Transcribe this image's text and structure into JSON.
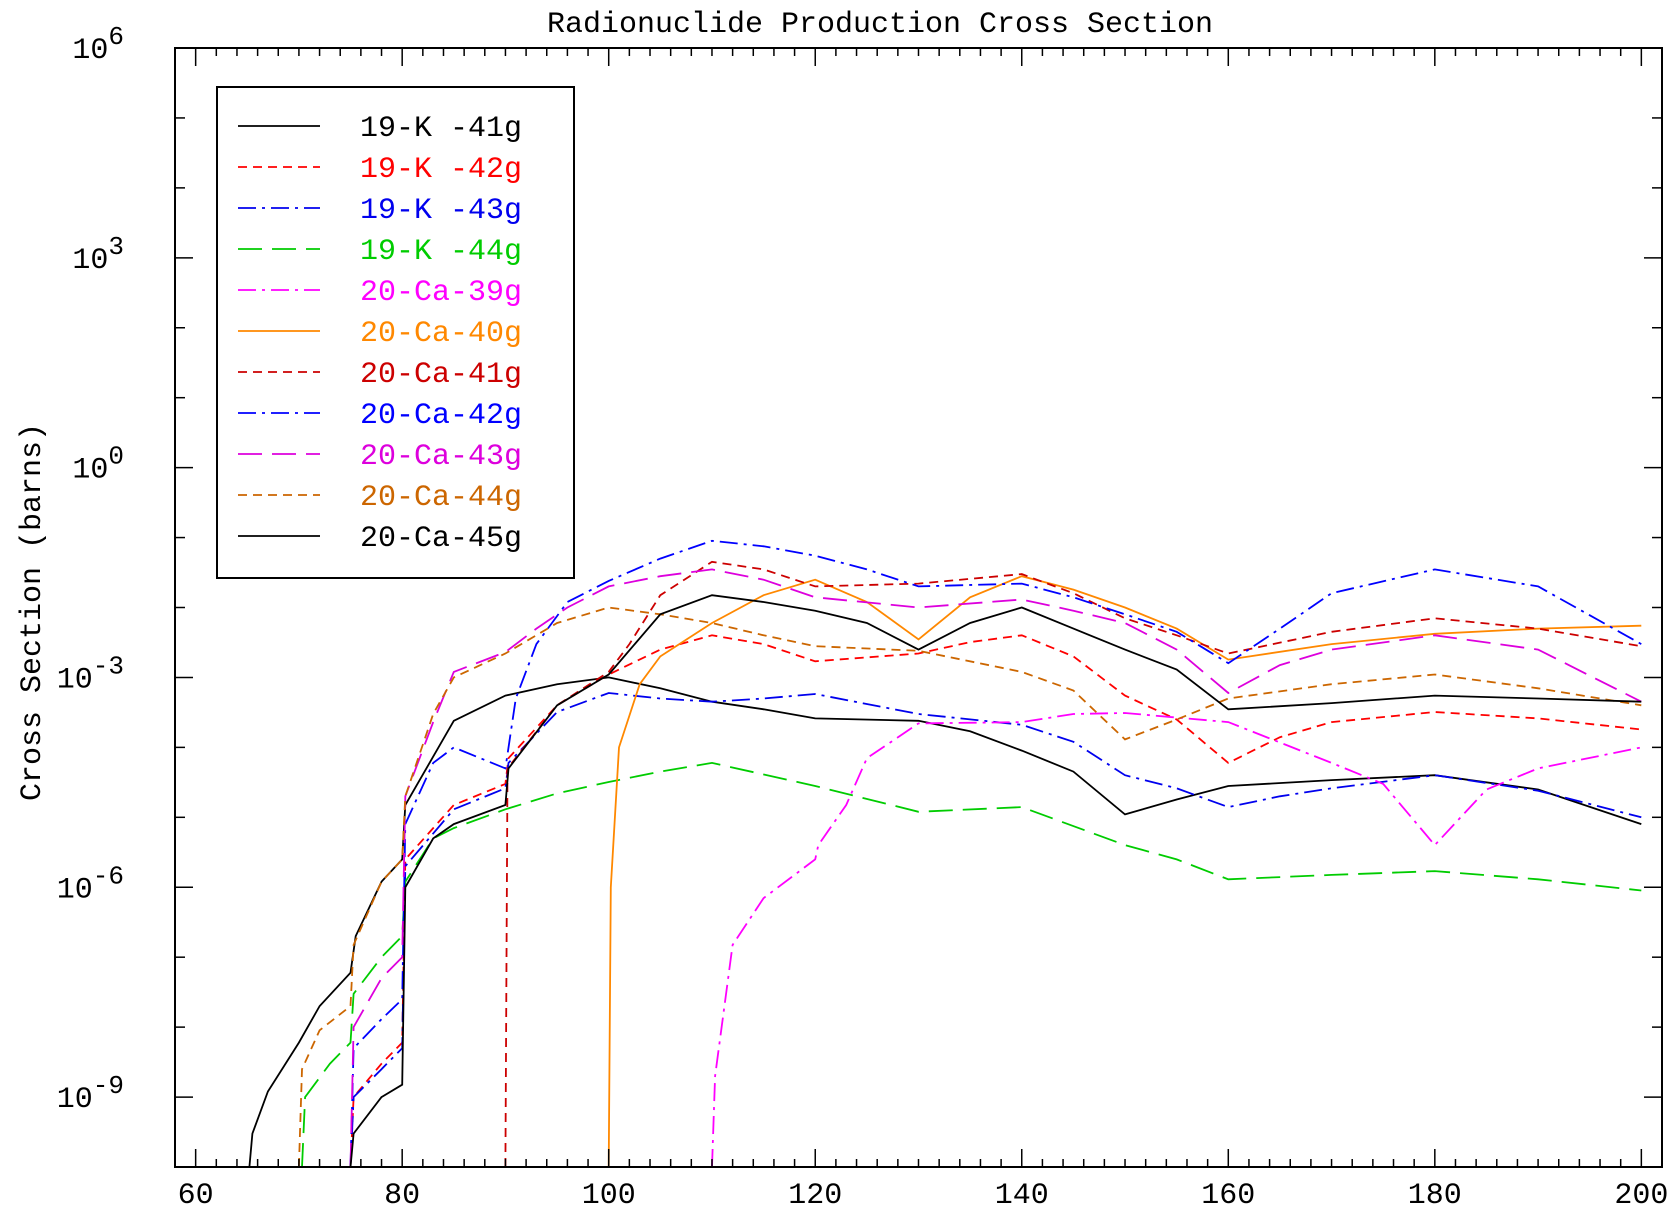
{
  "chart_data": {
    "type": "line",
    "title": "Radionuclide Production Cross Section",
    "xlabel": "",
    "ylabel": "Cross Section (barns)",
    "xlim": [
      58,
      202
    ],
    "ylim": [
      1e-10,
      1000000.0
    ],
    "yscale": "log",
    "grid": false,
    "legend_position": "top-left",
    "x_ticks": [
      "60",
      "80",
      "100",
      "120",
      "140",
      "160",
      "180",
      "200"
    ],
    "y_ticks": [
      {
        "base": "10",
        "exp": "6",
        "value": 1000000.0
      },
      {
        "base": "10",
        "exp": "3",
        "value": 1000.0
      },
      {
        "base": "10",
        "exp": "0",
        "value": 1
      },
      {
        "base": "10",
        "exp": "-3",
        "value": 0.001
      },
      {
        "base": "10",
        "exp": "-6",
        "value": 1e-06
      },
      {
        "base": "10",
        "exp": "-9",
        "value": 1e-09
      }
    ],
    "series": [
      {
        "name": "19-K -41g",
        "color": "#000000",
        "dash": "solid",
        "points": [
          [
            65.2,
            1e-10
          ],
          [
            65.5,
            3e-10
          ],
          [
            67,
            1.2e-09
          ],
          [
            70,
            6e-09
          ],
          [
            72,
            2e-08
          ],
          [
            75,
            6e-08
          ],
          [
            75.5,
            2e-07
          ],
          [
            78,
            1.2e-06
          ],
          [
            80,
            2.5e-06
          ],
          [
            80.3,
            1.5e-05
          ],
          [
            85,
            0.00024
          ],
          [
            90,
            0.00055
          ],
          [
            95,
            0.0008
          ],
          [
            100,
            0.001
          ],
          [
            105,
            0.0007
          ],
          [
            110,
            0.00045
          ],
          [
            115,
            0.00035
          ],
          [
            120,
            0.00026
          ],
          [
            130,
            0.00024
          ],
          [
            135,
            0.00017
          ],
          [
            140,
            9e-05
          ],
          [
            145,
            4.5e-05
          ],
          [
            150,
            1.1e-05
          ],
          [
            155,
            1.8e-05
          ],
          [
            160,
            2.8e-05
          ],
          [
            170,
            3.4e-05
          ],
          [
            180,
            4e-05
          ],
          [
            190,
            2.5e-05
          ],
          [
            200,
            8e-06
          ]
        ]
      },
      {
        "name": "19-K -42g",
        "color": "#ff0000",
        "dash": "dash",
        "points": [
          [
            75,
            1e-10
          ],
          [
            75.3,
            1e-09
          ],
          [
            78,
            3e-09
          ],
          [
            80,
            6e-09
          ],
          [
            80.3,
            2.5e-06
          ],
          [
            85,
            1.5e-05
          ],
          [
            90,
            3e-05
          ],
          [
            90.3,
            7e-05
          ],
          [
            95,
            0.0004
          ],
          [
            100,
            0.0011
          ],
          [
            105,
            0.0025
          ],
          [
            110,
            0.004
          ],
          [
            115,
            0.003
          ],
          [
            120,
            0.0017
          ],
          [
            130,
            0.0022
          ],
          [
            135,
            0.0032
          ],
          [
            140,
            0.004
          ],
          [
            145,
            0.002
          ],
          [
            150,
            0.00055
          ],
          [
            155,
            0.00025
          ],
          [
            160,
            6e-05
          ],
          [
            165,
            0.00014
          ],
          [
            170,
            0.00023
          ],
          [
            180,
            0.00032
          ],
          [
            190,
            0.00026
          ],
          [
            200,
            0.00018
          ]
        ]
      },
      {
        "name": "19-K -43g",
        "color": "#0000ee",
        "dash": "dashdot",
        "points": [
          [
            75,
            1e-10
          ],
          [
            75.3,
            1e-09
          ],
          [
            78,
            2.5e-09
          ],
          [
            80,
            5e-09
          ],
          [
            80.3,
            2e-06
          ],
          [
            85,
            1.3e-05
          ],
          [
            90,
            2.6e-05
          ],
          [
            90.3,
            6e-05
          ],
          [
            95,
            0.00032
          ],
          [
            100,
            0.0006
          ],
          [
            105,
            0.0005
          ],
          [
            110,
            0.00045
          ],
          [
            115,
            0.0005
          ],
          [
            120,
            0.00058
          ],
          [
            130,
            0.0003
          ],
          [
            140,
            0.00021
          ],
          [
            145,
            0.00012
          ],
          [
            150,
            4e-05
          ],
          [
            155,
            2.6e-05
          ],
          [
            160,
            1.4e-05
          ],
          [
            165,
            2e-05
          ],
          [
            170,
            2.6e-05
          ],
          [
            180,
            4e-05
          ],
          [
            190,
            2.4e-05
          ],
          [
            200,
            1e-05
          ]
        ]
      },
      {
        "name": "19-K -44g",
        "color": "#00cc00",
        "dash": "longdash",
        "points": [
          [
            70.3,
            1e-10
          ],
          [
            70.6,
            1e-09
          ],
          [
            73,
            3e-09
          ],
          [
            75,
            6e-09
          ],
          [
            75.3,
            3e-08
          ],
          [
            78,
            1e-07
          ],
          [
            80,
            2e-07
          ],
          [
            80.3,
            1.2e-06
          ],
          [
            83,
            5e-06
          ],
          [
            85,
            7e-06
          ],
          [
            90,
            1.3e-05
          ],
          [
            95,
            2.2e-05
          ],
          [
            100,
            3.2e-05
          ],
          [
            105,
            4.5e-05
          ],
          [
            110,
            6e-05
          ],
          [
            120,
            2.8e-05
          ],
          [
            130,
            1.2e-05
          ],
          [
            140,
            1.4e-05
          ],
          [
            150,
            4e-06
          ],
          [
            155,
            2.5e-06
          ],
          [
            160,
            1.3e-06
          ],
          [
            170,
            1.5e-06
          ],
          [
            180,
            1.7e-06
          ],
          [
            190,
            1.3e-06
          ],
          [
            200,
            9e-07
          ]
        ]
      },
      {
        "name": "20-Ca-39g",
        "color": "#ff00ff",
        "dash": "dashdot",
        "points": [
          [
            110,
            1e-10
          ],
          [
            110.3,
            2e-09
          ],
          [
            112,
            1.5e-07
          ],
          [
            115,
            7e-07
          ],
          [
            120,
            2.5e-06
          ],
          [
            120.3,
            4e-06
          ],
          [
            123,
            1.5e-05
          ],
          [
            125,
            7e-05
          ],
          [
            130,
            0.00022
          ],
          [
            140,
            0.00023
          ],
          [
            145,
            0.0003
          ],
          [
            150,
            0.00031
          ],
          [
            160,
            0.00023
          ],
          [
            170,
            6e-05
          ],
          [
            175,
            3e-05
          ],
          [
            180,
            4e-06
          ],
          [
            185,
            2.5e-05
          ],
          [
            190,
            5e-05
          ],
          [
            200,
            0.0001
          ]
        ]
      },
      {
        "name": "20-Ca-40g",
        "color": "#ff8800",
        "dash": "solid",
        "points": [
          [
            100,
            1e-10
          ],
          [
            100.2,
            1e-06
          ],
          [
            101,
            0.0001
          ],
          [
            103,
            0.0008
          ],
          [
            105,
            0.002
          ],
          [
            110,
            0.006
          ],
          [
            115,
            0.015
          ],
          [
            120,
            0.025
          ],
          [
            125,
            0.012
          ],
          [
            130,
            0.0035
          ],
          [
            135,
            0.014
          ],
          [
            140,
            0.028
          ],
          [
            145,
            0.018
          ],
          [
            150,
            0.01
          ],
          [
            155,
            0.005
          ],
          [
            160,
            0.0018
          ],
          [
            170,
            0.003
          ],
          [
            180,
            0.0042
          ],
          [
            190,
            0.005
          ],
          [
            200,
            0.0055
          ]
        ]
      },
      {
        "name": "20-Ca-41g",
        "color": "#cc0000",
        "dash": "dash",
        "points": [
          [
            90,
            1e-10
          ],
          [
            90.2,
            5e-05
          ],
          [
            95,
            0.0004
          ],
          [
            100,
            0.0012
          ],
          [
            102,
            0.003
          ],
          [
            105,
            0.015
          ],
          [
            110,
            0.045
          ],
          [
            115,
            0.035
          ],
          [
            120,
            0.02
          ],
          [
            130,
            0.022
          ],
          [
            140,
            0.03
          ],
          [
            145,
            0.016
          ],
          [
            150,
            0.007
          ],
          [
            155,
            0.004
          ],
          [
            160,
            0.0022
          ],
          [
            170,
            0.0045
          ],
          [
            180,
            0.007
          ],
          [
            190,
            0.005
          ],
          [
            200,
            0.0028
          ]
        ]
      },
      {
        "name": "20-Ca-42g",
        "color": "#0000ff",
        "dash": "dashdot",
        "points": [
          [
            75,
            1e-10
          ],
          [
            75.3,
            5e-09
          ],
          [
            78,
            1.3e-08
          ],
          [
            80,
            2.5e-08
          ],
          [
            80.3,
            8e-06
          ],
          [
            83,
            6e-05
          ],
          [
            85,
            0.0001
          ],
          [
            90,
            5e-05
          ],
          [
            91,
            0.0005
          ],
          [
            93,
            0.003
          ],
          [
            96,
            0.012
          ],
          [
            100,
            0.024
          ],
          [
            105,
            0.05
          ],
          [
            110,
            0.09
          ],
          [
            115,
            0.075
          ],
          [
            120,
            0.055
          ],
          [
            125,
            0.035
          ],
          [
            130,
            0.02
          ],
          [
            140,
            0.022
          ],
          [
            145,
            0.014
          ],
          [
            150,
            0.008
          ],
          [
            155,
            0.0045
          ],
          [
            160,
            0.0016
          ],
          [
            165,
            0.005
          ],
          [
            170,
            0.016
          ],
          [
            180,
            0.035
          ],
          [
            190,
            0.02
          ],
          [
            200,
            0.003
          ]
        ]
      },
      {
        "name": "20-Ca-43g",
        "color": "#dd00dd",
        "dash": "longdash",
        "points": [
          [
            75,
            1e-10
          ],
          [
            75.3,
            1e-08
          ],
          [
            78,
            5e-08
          ],
          [
            80,
            1e-07
          ],
          [
            80.3,
            2e-05
          ],
          [
            83,
            0.00023
          ],
          [
            85,
            0.0012
          ],
          [
            90,
            0.0023
          ],
          [
            93,
            0.005
          ],
          [
            96,
            0.01
          ],
          [
            100,
            0.02
          ],
          [
            105,
            0.028
          ],
          [
            110,
            0.035
          ],
          [
            115,
            0.025
          ],
          [
            120,
            0.014
          ],
          [
            130,
            0.01
          ],
          [
            140,
            0.013
          ],
          [
            145,
            0.009
          ],
          [
            150,
            0.006
          ],
          [
            155,
            0.0025
          ],
          [
            160,
            0.0006
          ],
          [
            165,
            0.0015
          ],
          [
            170,
            0.0025
          ],
          [
            180,
            0.004
          ],
          [
            190,
            0.0025
          ],
          [
            200,
            0.00045
          ]
        ]
      },
      {
        "name": "20-Ca-44g",
        "color": "#cc6600",
        "dash": "dash",
        "points": [
          [
            70,
            1e-10
          ],
          [
            70.3,
            2.5e-09
          ],
          [
            72,
            9e-09
          ],
          [
            75,
            2e-08
          ],
          [
            75.3,
            1.5e-07
          ],
          [
            78,
            1.2e-06
          ],
          [
            80,
            2.5e-06
          ],
          [
            80.3,
            2e-05
          ],
          [
            83,
            0.0003
          ],
          [
            85,
            0.001
          ],
          [
            90,
            0.0022
          ],
          [
            95,
            0.006
          ],
          [
            100,
            0.01
          ],
          [
            105,
            0.008
          ],
          [
            110,
            0.006
          ],
          [
            115,
            0.004
          ],
          [
            120,
            0.0028
          ],
          [
            130,
            0.0024
          ],
          [
            140,
            0.0012
          ],
          [
            145,
            0.00065
          ],
          [
            150,
            0.00013
          ],
          [
            155,
            0.00025
          ],
          [
            160,
            0.0005
          ],
          [
            170,
            0.0008
          ],
          [
            180,
            0.0011
          ],
          [
            190,
            0.0007
          ],
          [
            200,
            0.0004
          ]
        ]
      },
      {
        "name": "20-Ca-45g",
        "color": "#000000",
        "dash": "solid",
        "points": [
          [
            75,
            1e-10
          ],
          [
            75.3,
            3e-10
          ],
          [
            78,
            1e-09
          ],
          [
            80,
            1.5e-09
          ],
          [
            80.3,
            1e-06
          ],
          [
            83,
            5e-06
          ],
          [
            85,
            8e-06
          ],
          [
            90,
            1.5e-05
          ],
          [
            90.3,
            5e-05
          ],
          [
            95,
            0.0004
          ],
          [
            100,
            0.0011
          ],
          [
            105,
            0.008
          ],
          [
            110,
            0.015
          ],
          [
            115,
            0.012
          ],
          [
            120,
            0.009
          ],
          [
            125,
            0.006
          ],
          [
            130,
            0.0025
          ],
          [
            135,
            0.006
          ],
          [
            140,
            0.01
          ],
          [
            145,
            0.005
          ],
          [
            150,
            0.0025
          ],
          [
            155,
            0.0013
          ],
          [
            160,
            0.00035
          ],
          [
            170,
            0.00043
          ],
          [
            180,
            0.00055
          ],
          [
            190,
            0.0005
          ],
          [
            200,
            0.00045
          ]
        ]
      }
    ]
  }
}
